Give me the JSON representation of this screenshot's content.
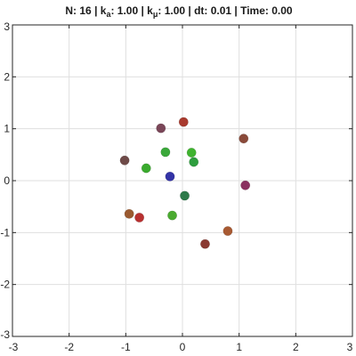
{
  "title": {
    "n_part": "N: 16 | k",
    "ka_sub": "a",
    "ka_part": ": 1.00 | k",
    "kmu_sub": "μ",
    "rest_part": ": 1.00 | dt: 0.01 | Time: 0.00"
  },
  "chart_data": {
    "type": "scatter",
    "title": "N: 16 | k_a: 1.00 | k_μ: 1.00 | dt: 0.01 | Time: 0.00",
    "xlabel": "",
    "ylabel": "",
    "xlim": [
      -3,
      3
    ],
    "ylim": [
      -3,
      3
    ],
    "xticks": [
      -3,
      -2,
      -1,
      0,
      1,
      2,
      3
    ],
    "yticks": [
      -3,
      -2,
      -1,
      0,
      1,
      2,
      3
    ],
    "grid": true,
    "points": [
      {
        "x": 0.02,
        "y": 1.13,
        "color": "#a83a2e"
      },
      {
        "x": -0.38,
        "y": 1.01,
        "color": "#7a4658"
      },
      {
        "x": 1.08,
        "y": 0.81,
        "color": "#8a4a3a"
      },
      {
        "x": -0.3,
        "y": 0.55,
        "color": "#3aa83a"
      },
      {
        "x": 0.16,
        "y": 0.54,
        "color": "#3fb32f"
      },
      {
        "x": 0.2,
        "y": 0.36,
        "color": "#2e9e3e"
      },
      {
        "x": -1.02,
        "y": 0.39,
        "color": "#6e4a48"
      },
      {
        "x": -0.64,
        "y": 0.24,
        "color": "#3aaa2e"
      },
      {
        "x": -0.22,
        "y": 0.08,
        "color": "#3333a6"
      },
      {
        "x": 1.11,
        "y": -0.09,
        "color": "#8a3060"
      },
      {
        "x": 0.04,
        "y": -0.29,
        "color": "#2e7a4a"
      },
      {
        "x": -0.94,
        "y": -0.64,
        "color": "#9a5a30"
      },
      {
        "x": -0.76,
        "y": -0.71,
        "color": "#b83030"
      },
      {
        "x": -0.18,
        "y": -0.67,
        "color": "#4aaa30"
      },
      {
        "x": 0.8,
        "y": -0.97,
        "color": "#a85a32"
      },
      {
        "x": 0.4,
        "y": -1.22,
        "color": "#8a3a32"
      }
    ]
  }
}
